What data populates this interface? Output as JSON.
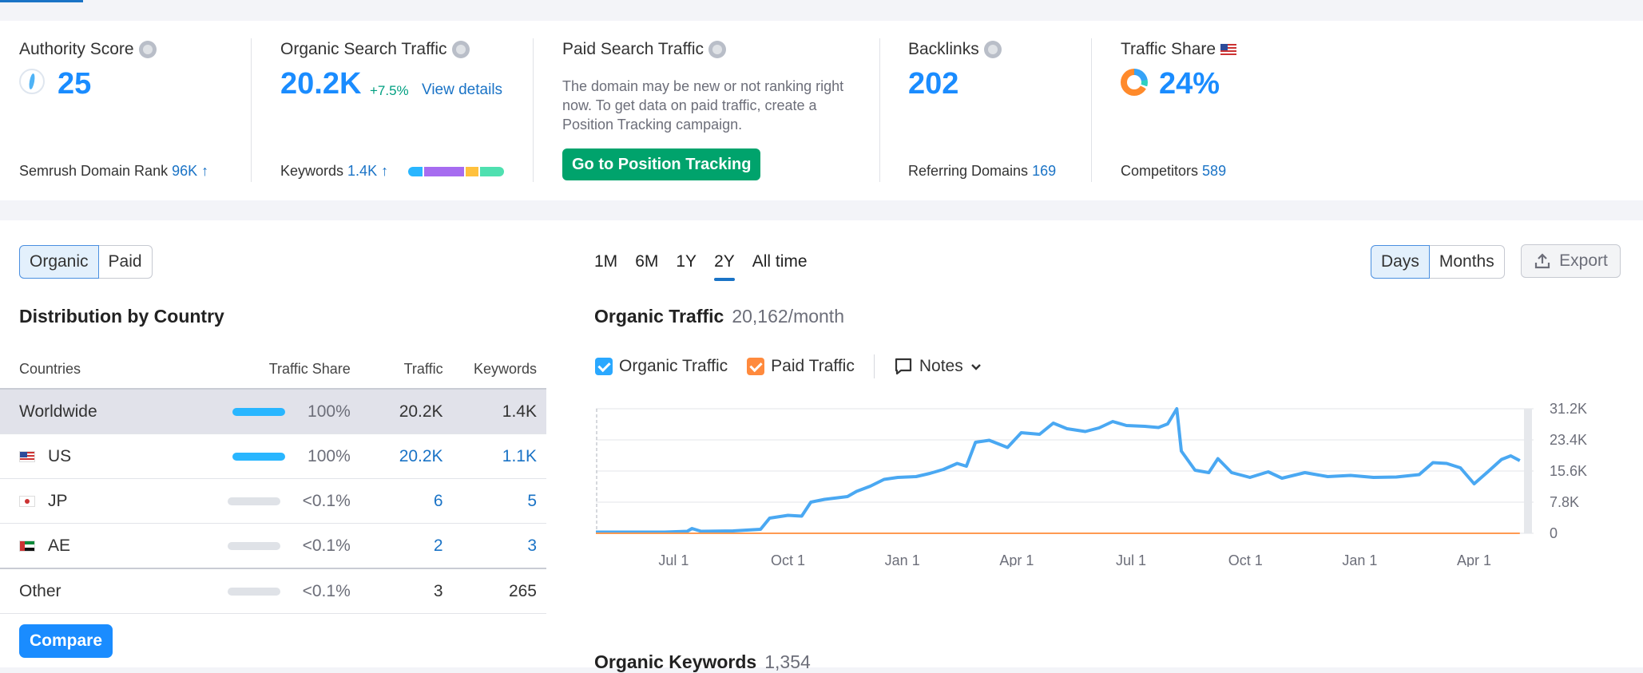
{
  "summary": {
    "authority": {
      "title": "Authority Score",
      "value": "25",
      "foot_label": "Semrush Domain Rank",
      "foot_value": "96K ↑"
    },
    "organic": {
      "title": "Organic Search Traffic",
      "value": "20.2K",
      "change": "+7.5%",
      "view_details": "View details",
      "foot_label": "Keywords",
      "foot_value": "1.4K ↑"
    },
    "paid": {
      "title": "Paid Search Traffic",
      "description": "The domain may be new or not ranking right now. To get data on paid traffic, create a Position Tracking campaign.",
      "button": "Go to Position Tracking"
    },
    "backlinks": {
      "title": "Backlinks",
      "value": "202",
      "foot_label": "Referring Domains",
      "foot_value": "169"
    },
    "traffic_share": {
      "title": "Traffic Share",
      "value": "24%",
      "foot_label": "Competitors",
      "foot_value": "589"
    }
  },
  "left": {
    "toggle": [
      "Organic",
      "Paid"
    ],
    "title": "Distribution by Country",
    "headers": [
      "Countries",
      "Traffic Share",
      "Traffic",
      "Keywords"
    ],
    "rows": [
      {
        "country": "Worldwide",
        "flag": "",
        "share": "100%",
        "share_fill": 1.0,
        "traffic": "20.2K",
        "keywords": "1.4K"
      },
      {
        "country": "US",
        "flag": "us",
        "share": "100%",
        "share_fill": 1.0,
        "traffic": "20.2K",
        "keywords": "1.1K"
      },
      {
        "country": "JP",
        "flag": "jp",
        "share": "<0.1%",
        "share_fill": 0.0,
        "traffic": "6",
        "keywords": "5"
      },
      {
        "country": "AE",
        "flag": "ae",
        "share": "<0.1%",
        "share_fill": 0.0,
        "traffic": "2",
        "keywords": "3"
      },
      {
        "country": "Other",
        "flag": "",
        "share": "<0.1%",
        "share_fill": 0.0,
        "traffic": "3",
        "keywords": "265"
      }
    ],
    "compare": "Compare"
  },
  "right": {
    "periods": [
      "1M",
      "6M",
      "1Y",
      "2Y",
      "All time"
    ],
    "active_period": "2Y",
    "granularity": [
      "Days",
      "Months"
    ],
    "export": "Export",
    "title": "Organic Traffic",
    "subtitle": "20,162/month",
    "legend": {
      "organic": "Organic Traffic",
      "paid": "Paid Traffic",
      "notes": "Notes"
    },
    "keywords_title": "Organic Keywords",
    "keywords_value": "1,354"
  },
  "colors": {
    "accent": "#1a8cff",
    "organic_line": "#4aa8f2",
    "paid_line": "#ff9a52",
    "green_button": "#00a36c"
  },
  "chart_data": {
    "type": "line",
    "x_labels": [
      "Jul 1",
      "Oct 1",
      "Jan 1",
      "Apr 1",
      "Jul 1",
      "Oct 1",
      "Jan 1",
      "Apr 1"
    ],
    "y_ticks": [
      "0",
      "7.8K",
      "15.6K",
      "23.4K",
      "31.2K"
    ],
    "ylim": [
      0,
      31200
    ],
    "grid": true,
    "series": [
      {
        "name": "Organic Traffic",
        "color": "#4aa8f2",
        "points": [
          [
            0,
            300
          ],
          [
            0.15,
            300
          ],
          [
            0.2,
            500
          ],
          [
            0.21,
            1200
          ],
          [
            0.23,
            500
          ],
          [
            0.3,
            600
          ],
          [
            0.36,
            1000
          ],
          [
            0.38,
            3800
          ],
          [
            0.42,
            4500
          ],
          [
            0.45,
            4300
          ],
          [
            0.47,
            7800
          ],
          [
            0.5,
            8500
          ],
          [
            0.55,
            9200
          ],
          [
            0.57,
            10500
          ],
          [
            0.6,
            11800
          ],
          [
            0.63,
            13500
          ],
          [
            0.66,
            14000
          ],
          [
            0.7,
            14200
          ],
          [
            0.73,
            15000
          ],
          [
            0.76,
            16000
          ],
          [
            0.79,
            17500
          ],
          [
            0.81,
            16800
          ],
          [
            0.83,
            22800
          ],
          [
            0.86,
            23300
          ],
          [
            0.9,
            21500
          ],
          [
            0.93,
            25200
          ],
          [
            0.97,
            24800
          ],
          [
            1.0,
            27600
          ],
          [
            1.03,
            26200
          ],
          [
            1.07,
            25500
          ],
          [
            1.1,
            26400
          ],
          [
            1.13,
            28000
          ],
          [
            1.16,
            27000
          ],
          [
            1.2,
            26800
          ],
          [
            1.23,
            26500
          ],
          [
            1.25,
            27400
          ],
          [
            1.27,
            31200
          ],
          [
            1.28,
            20600
          ],
          [
            1.31,
            15800
          ],
          [
            1.34,
            15200
          ],
          [
            1.36,
            18700
          ],
          [
            1.39,
            15200
          ],
          [
            1.43,
            14000
          ],
          [
            1.47,
            15400
          ],
          [
            1.5,
            13800
          ],
          [
            1.55,
            15200
          ],
          [
            1.6,
            14200
          ],
          [
            1.65,
            14500
          ],
          [
            1.7,
            14000
          ],
          [
            1.75,
            14100
          ],
          [
            1.8,
            14700
          ],
          [
            1.83,
            17700
          ],
          [
            1.86,
            17500
          ],
          [
            1.89,
            16400
          ],
          [
            1.92,
            12400
          ],
          [
            1.95,
            15400
          ],
          [
            1.98,
            18500
          ],
          [
            2.0,
            19400
          ],
          [
            2.02,
            18200
          ]
        ]
      },
      {
        "name": "Paid Traffic",
        "color": "#ff9a52",
        "points": [
          [
            0,
            0
          ],
          [
            2.02,
            0
          ]
        ]
      }
    ],
    "x_label_positions": [
      0.17,
      0.42,
      0.67,
      0.92,
      1.17,
      1.42,
      1.67,
      1.92
    ]
  }
}
